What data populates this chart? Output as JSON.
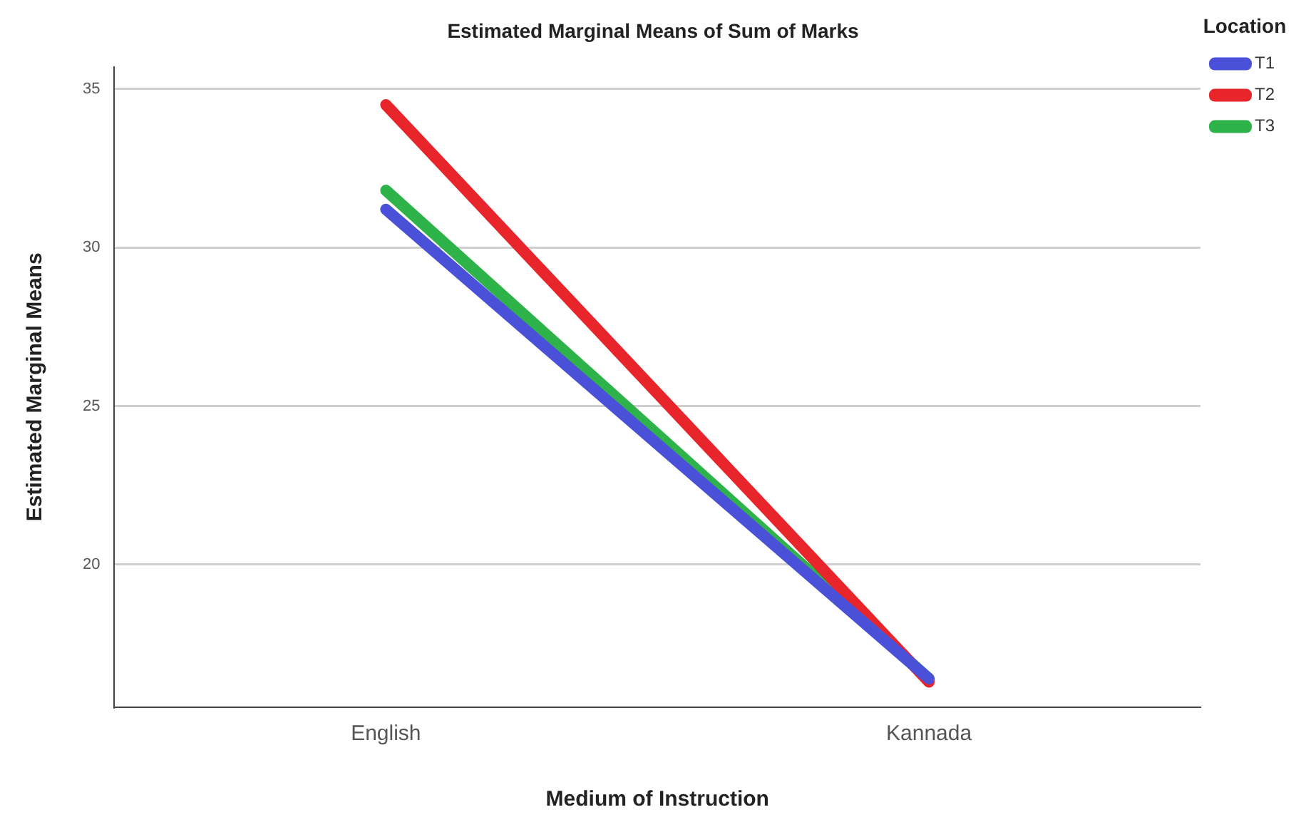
{
  "chart_data": {
    "type": "line",
    "title": "Estimated Marginal Means of Sum of Marks",
    "xlabel": "Medium of Instruction",
    "ylabel": "Estimated Marginal Means",
    "legend_title": "Location",
    "categories": [
      "English",
      "Kannada"
    ],
    "series": [
      {
        "name": "T1",
        "color": "#4b50d8",
        "values": [
          31.2,
          16.4
        ]
      },
      {
        "name": "T2",
        "color": "#e8252a",
        "values": [
          34.5,
          16.3
        ]
      },
      {
        "name": "T3",
        "color": "#2eb24a",
        "values": [
          31.8,
          16.4
        ]
      }
    ],
    "ylim": [
      15.5,
      35.7
    ],
    "yticks": [
      20,
      25,
      30,
      35
    ],
    "grid": "y",
    "legend": "top right",
    "marker": "none",
    "line_style": "solid"
  }
}
